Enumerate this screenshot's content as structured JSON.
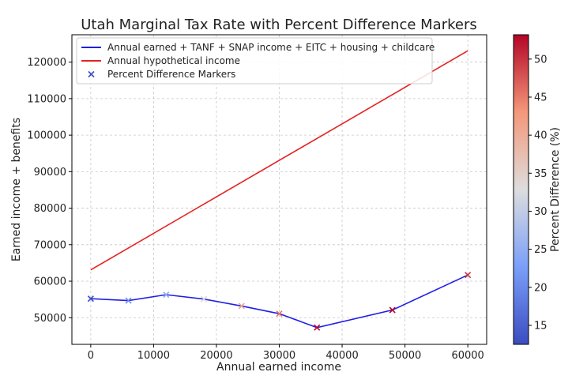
{
  "chart_data": {
    "type": "line",
    "title": "Utah Marginal Tax Rate with Percent Difference Markers",
    "xlabel": "Annual earned income",
    "ylabel": "Earned income + benefits",
    "xlim": [
      -3000,
      63000
    ],
    "ylim": [
      42700,
      127500
    ],
    "x_ticks": [
      0,
      10000,
      20000,
      30000,
      40000,
      50000,
      60000
    ],
    "y_ticks": [
      50000,
      60000,
      70000,
      80000,
      90000,
      100000,
      110000,
      120000
    ],
    "grid": true,
    "legend_position": "top-left",
    "series": [
      {
        "name": "Annual earned + TANF + SNAP income + EITC + housing + childcare",
        "type": "line",
        "color": "#1f1fe6",
        "x": [
          0,
          6000,
          12000,
          18000,
          24000,
          30000,
          36000,
          48000,
          60000
        ],
        "y": [
          55200,
          54700,
          56300,
          55100,
          53200,
          51100,
          47300,
          52100,
          61700
        ]
      },
      {
        "name": "Annual hypothetical income",
        "type": "line",
        "color": "#e62222",
        "x": [
          0,
          60000
        ],
        "y": [
          63100,
          123100
        ]
      },
      {
        "name": "Percent Difference Markers",
        "type": "scatter",
        "marker": "x",
        "legend_color": "#3a4cc0",
        "x": [
          0,
          6000,
          12000,
          18000,
          24000,
          30000,
          36000,
          48000,
          60000
        ],
        "y": [
          55200,
          54700,
          56300,
          55100,
          53200,
          51100,
          47300,
          52100,
          61700
        ],
        "percent_difference": [
          12.5,
          20.6,
          25.1,
          33.8,
          41.1,
          45.5,
          52.8,
          53.2,
          49.8
        ]
      }
    ],
    "colorbar": {
      "label": "Percent Difference (%)",
      "colormap": "coolwarm",
      "range": [
        12.5,
        53.2
      ],
      "ticks": [
        15,
        20,
        25,
        30,
        35,
        40,
        45,
        50
      ]
    }
  }
}
